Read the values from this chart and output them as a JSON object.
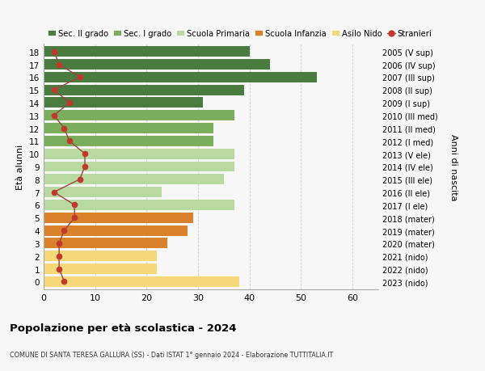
{
  "ages": [
    18,
    17,
    16,
    15,
    14,
    13,
    12,
    11,
    10,
    9,
    8,
    7,
    6,
    5,
    4,
    3,
    2,
    1,
    0
  ],
  "bar_values": [
    40,
    44,
    53,
    39,
    31,
    37,
    33,
    33,
    37,
    37,
    35,
    23,
    37,
    29,
    28,
    24,
    22,
    22,
    38
  ],
  "stranieri": [
    2,
    3,
    7,
    2,
    5,
    2,
    4,
    5,
    8,
    8,
    7,
    2,
    6,
    6,
    4,
    3,
    3,
    3,
    4
  ],
  "right_labels": [
    "2005 (V sup)",
    "2006 (IV sup)",
    "2007 (III sup)",
    "2008 (II sup)",
    "2009 (I sup)",
    "2010 (III med)",
    "2011 (II med)",
    "2012 (I med)",
    "2013 (V ele)",
    "2014 (IV ele)",
    "2015 (III ele)",
    "2016 (II ele)",
    "2017 (I ele)",
    "2018 (mater)",
    "2019 (mater)",
    "2020 (mater)",
    "2021 (nido)",
    "2022 (nido)",
    "2023 (nido)"
  ],
  "bar_colors": [
    "#4a7c3f",
    "#4a7c3f",
    "#4a7c3f",
    "#4a7c3f",
    "#4a7c3f",
    "#7aad5c",
    "#7aad5c",
    "#7aad5c",
    "#b8d9a0",
    "#b8d9a0",
    "#b8d9a0",
    "#b8d9a0",
    "#b8d9a0",
    "#d9822b",
    "#d9822b",
    "#d9822b",
    "#f5d87a",
    "#f5d87a",
    "#f5d87a"
  ],
  "legend_labels": [
    "Sec. II grado",
    "Sec. I grado",
    "Scuola Primaria",
    "Scuola Infanzia",
    "Asilo Nido",
    "Stranieri"
  ],
  "legend_colors": [
    "#4a7c3f",
    "#7aad5c",
    "#b8d9a0",
    "#d9822b",
    "#f5d87a",
    "#c0392b"
  ],
  "stranieri_color": "#c0392b",
  "stranieri_line_color": "#9e4444",
  "ylabel_left": "Età alunni",
  "ylabel_right": "Anni di nascita",
  "title": "Popolazione per età scolastica - 2024",
  "subtitle": "COMUNE DI SANTA TERESA GALLURA (SS) - Dati ISTAT 1° gennaio 2024 - Elaborazione TUTTITALIA.IT",
  "xlim": [
    0,
    65
  ],
  "background_color": "#f7f7f7",
  "grid_color": "#cccccc"
}
